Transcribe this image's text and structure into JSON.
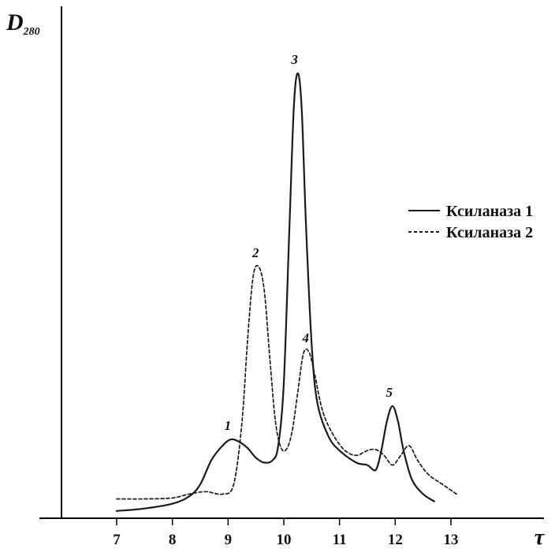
{
  "chart_data": {
    "type": "line",
    "ylabel": "D",
    "ylabel_sub": "280",
    "xlabel": "τ",
    "xlim": [
      6.0,
      13.5
    ],
    "ylim": [
      0,
      1.0
    ],
    "xticks": [
      7,
      8,
      9,
      10,
      11,
      12,
      13
    ],
    "xtick_labels": [
      "7",
      "8",
      "9",
      "10",
      "11",
      "12",
      "13"
    ],
    "grid": false,
    "legend_position": "right",
    "series": [
      {
        "name": "Ксиланаза 1",
        "style": "solid",
        "color": "#1a1a1a",
        "x": [
          7.0,
          7.5,
          8.0,
          8.3,
          8.5,
          8.7,
          8.9,
          9.05,
          9.2,
          9.35,
          9.5,
          9.65,
          9.8,
          9.9,
          10.0,
          10.1,
          10.18,
          10.25,
          10.32,
          10.4,
          10.5,
          10.6,
          10.8,
          11.0,
          11.3,
          11.5,
          11.65,
          11.75,
          11.85,
          11.95,
          12.05,
          12.15,
          12.3,
          12.5,
          12.7
        ],
        "y": [
          0.015,
          0.02,
          0.03,
          0.045,
          0.07,
          0.12,
          0.15,
          0.163,
          0.158,
          0.145,
          0.125,
          0.115,
          0.12,
          0.15,
          0.28,
          0.6,
          0.85,
          0.92,
          0.85,
          0.6,
          0.36,
          0.24,
          0.17,
          0.14,
          0.115,
          0.11,
          0.1,
          0.14,
          0.2,
          0.232,
          0.2,
          0.14,
          0.08,
          0.05,
          0.035
        ]
      },
      {
        "name": "Ксиланаза 2",
        "style": "dashed",
        "color": "#1a1a1a",
        "x": [
          7.0,
          7.5,
          8.0,
          8.3,
          8.6,
          8.9,
          9.1,
          9.25,
          9.35,
          9.45,
          9.55,
          9.65,
          9.75,
          9.85,
          9.95,
          10.05,
          10.15,
          10.25,
          10.35,
          10.45,
          10.55,
          10.7,
          10.9,
          11.1,
          11.3,
          11.5,
          11.65,
          11.8,
          11.95,
          12.1,
          12.25,
          12.4,
          12.6,
          12.85,
          13.1
        ],
        "y": [
          0.04,
          0.04,
          0.042,
          0.05,
          0.055,
          0.05,
          0.07,
          0.2,
          0.37,
          0.5,
          0.52,
          0.47,
          0.33,
          0.2,
          0.146,
          0.143,
          0.18,
          0.26,
          0.34,
          0.344,
          0.3,
          0.22,
          0.17,
          0.14,
          0.13,
          0.14,
          0.142,
          0.13,
          0.11,
          0.13,
          0.15,
          0.12,
          0.09,
          0.07,
          0.05
        ]
      }
    ],
    "annotations": [
      {
        "text": "1",
        "x": 9.05,
        "y": 0.163
      },
      {
        "text": "2",
        "x": 9.55,
        "y": 0.52
      },
      {
        "text": "3",
        "x": 10.25,
        "y": 0.92
      },
      {
        "text": "4",
        "x": 10.45,
        "y": 0.344
      },
      {
        "text": "5",
        "x": 11.95,
        "y": 0.232
      }
    ]
  }
}
